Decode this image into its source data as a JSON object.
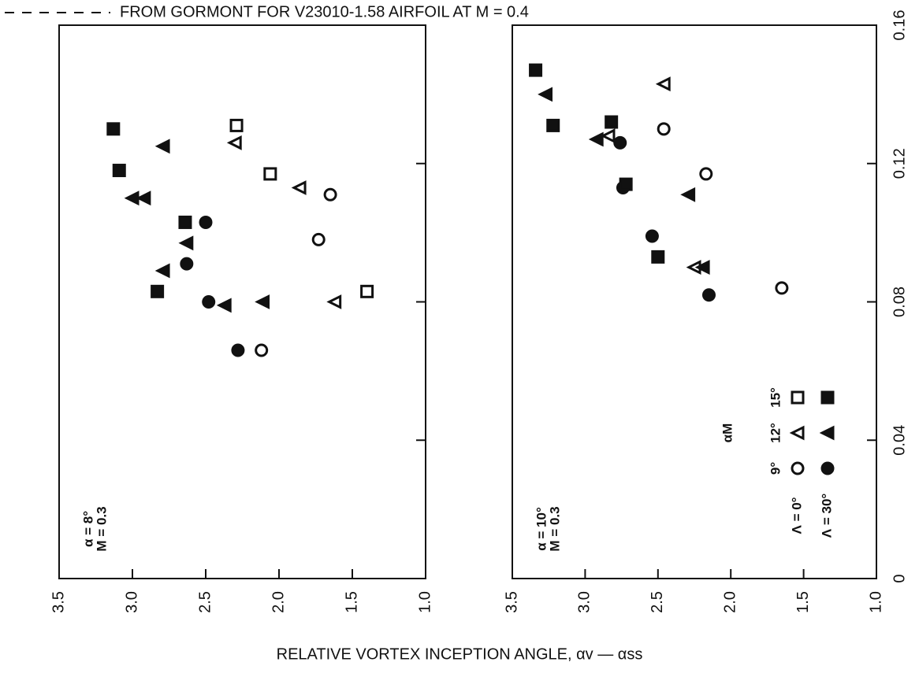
{
  "title": "FROM GORMONT FOR V23010-1.58 AIRFOIL AT M = 0.4",
  "axis_label": "RELATIVE VORTEX INCEPTION ANGLE, αv — αss",
  "chart_data": [
    {
      "type": "scatter",
      "annotations": [
        "α = 8°",
        "M = 0.3"
      ],
      "ylim": [
        1.0,
        3.5
      ],
      "yticks": [
        {
          "value": 3.5,
          "label": "3.5"
        },
        {
          "value": 3.0,
          "label": "3.0"
        },
        {
          "value": 2.5,
          "label": "2.5"
        },
        {
          "value": 2.0,
          "label": "2.0"
        },
        {
          "value": 1.5,
          "label": "1.5"
        },
        {
          "value": 1.0,
          "label": "1.0"
        }
      ],
      "xlim": [
        0,
        0.16
      ],
      "xticks": [
        0.04,
        0.08,
        0.12
      ],
      "series": [
        {
          "marker": "circle",
          "filled": false,
          "x": [
            0.111,
            0.098,
            0.066
          ],
          "values": [
            1.65,
            1.73,
            2.12
          ]
        },
        {
          "marker": "triangle",
          "filled": false,
          "x": [
            0.126,
            0.113,
            0.08
          ],
          "values": [
            2.3,
            1.86,
            1.62
          ]
        },
        {
          "marker": "square",
          "filled": false,
          "x": [
            0.131,
            0.117,
            0.083
          ],
          "values": [
            2.29,
            2.06,
            1.4
          ]
        },
        {
          "marker": "circle",
          "filled": true,
          "x": [
            0.103,
            0.091,
            0.08,
            0.066
          ],
          "values": [
            2.5,
            2.63,
            2.48,
            2.28
          ]
        },
        {
          "marker": "triangle",
          "filled": true,
          "x": [
            0.125,
            0.11,
            0.11,
            0.097,
            0.089,
            0.079,
            0.08
          ],
          "values": [
            2.79,
            3.0,
            2.92,
            2.63,
            2.79,
            2.37,
            2.11
          ]
        },
        {
          "marker": "square",
          "filled": true,
          "x": [
            0.13,
            0.118,
            0.103,
            0.083
          ],
          "values": [
            3.13,
            3.09,
            2.64,
            2.83
          ]
        }
      ]
    },
    {
      "type": "scatter",
      "annotations": [
        "α = 10°",
        "M = 0.3"
      ],
      "ylim": [
        1.0,
        3.5
      ],
      "yticks": [
        {
          "value": 3.5,
          "label": "3.5"
        },
        {
          "value": 3.0,
          "label": "3.0"
        },
        {
          "value": 2.5,
          "label": "2.5"
        },
        {
          "value": 2.0,
          "label": "2.0"
        },
        {
          "value": 1.5,
          "label": "1.5"
        },
        {
          "value": 1.0,
          "label": "1.0"
        }
      ],
      "xlim": [
        0,
        0.16
      ],
      "xticks": [
        0,
        0.04,
        0.08,
        0.12,
        0.16
      ],
      "legend": {
        "title": "αM",
        "columns": [
          "9°",
          "12°",
          "15°"
        ],
        "rows": [
          "Λ = 0°",
          "Λ = 30°"
        ]
      },
      "series": [
        {
          "marker": "circle",
          "filled": false,
          "x": [
            0.13,
            0.117,
            0.084
          ],
          "values": [
            2.46,
            2.17,
            1.65
          ]
        },
        {
          "marker": "triangle",
          "filled": false,
          "x": [
            0.143,
            0.128,
            0.09
          ],
          "values": [
            2.46,
            2.84,
            2.25
          ]
        },
        {
          "marker": "square",
          "filled": false,
          "x": [],
          "values": []
        },
        {
          "marker": "circle",
          "filled": true,
          "x": [
            0.126,
            0.113,
            0.099,
            0.082
          ],
          "values": [
            2.76,
            2.74,
            2.54,
            2.15
          ]
        },
        {
          "marker": "triangle",
          "filled": true,
          "x": [
            0.14,
            0.127,
            0.111,
            0.09
          ],
          "values": [
            3.27,
            2.92,
            2.29,
            2.19
          ]
        },
        {
          "marker": "square",
          "filled": true,
          "x": [
            0.147,
            0.131,
            0.132,
            0.114,
            0.093
          ],
          "values": [
            3.34,
            3.22,
            2.82,
            2.72,
            2.5
          ]
        }
      ]
    }
  ]
}
